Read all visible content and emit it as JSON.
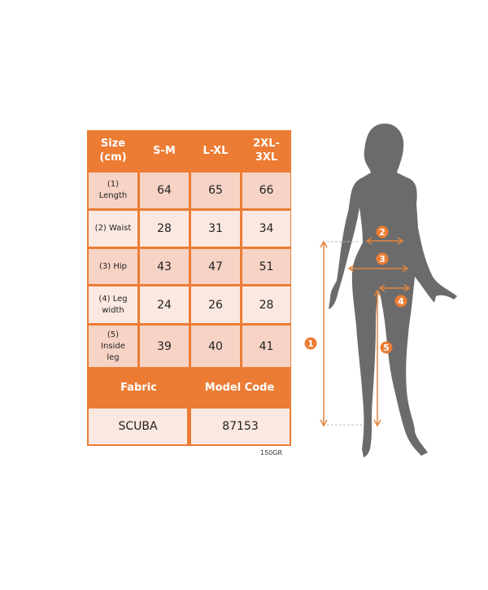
{
  "table": {
    "header": [
      "Size\n(cm)",
      "S-M",
      "L-XL",
      "2XL-\n3XL"
    ],
    "rows": [
      {
        "label": "(1)\nLength",
        "values": [
          "64",
          "65",
          "66"
        ]
      },
      {
        "label": "(2) Waist",
        "values": [
          "28",
          "31",
          "34"
        ]
      },
      {
        "label": "(3) Hip",
        "values": [
          "43",
          "47",
          "51"
        ]
      },
      {
        "label": "(4) Leg\nwidth",
        "values": [
          "24",
          "26",
          "28"
        ]
      },
      {
        "label": "(5)\nInside\nleg",
        "values": [
          "39",
          "40",
          "41"
        ]
      }
    ],
    "footer_headers": [
      "Fabric",
      "Model Code"
    ],
    "footer_values": [
      "SCUBA",
      "87153"
    ]
  },
  "note": "150GR",
  "markers": [
    "1",
    "2",
    "3",
    "4",
    "5"
  ],
  "colors": {
    "accent": "#ec7c34",
    "cell_dark": "#f6d3c5",
    "cell_light": "#fbe8e0",
    "silhouette": "#6b6b6b"
  }
}
